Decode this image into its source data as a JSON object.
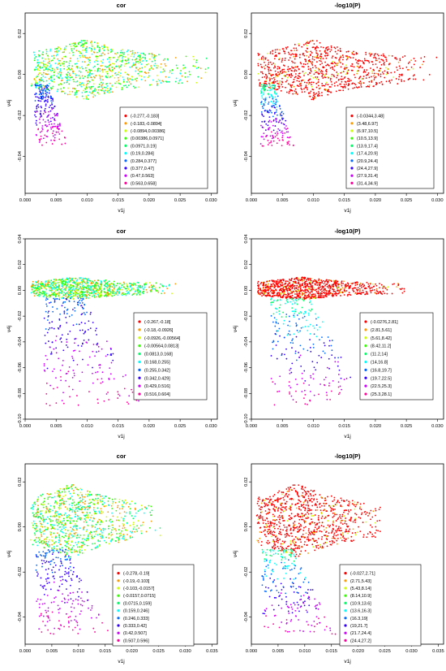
{
  "chart_data": [
    {
      "type": "scatter",
      "title": "cor",
      "xlabel": "v1j",
      "ylabel": "v4j",
      "xlim": [
        0,
        0.031
      ],
      "ylim": [
        -0.058,
        0.03
      ],
      "xticks": [
        "0.000",
        "0.005",
        "0.010",
        "0.015",
        "0.020",
        "0.025",
        "0.030"
      ],
      "yticks": [
        "-0.04",
        "-0.02",
        "0.00",
        "0.02"
      ],
      "legend_position": "bottom-right",
      "legend": [
        "(-0.277,-0.183]",
        "(-0.183,-0.0894]",
        "(-0.0894,0.00386]",
        "(0.00386,0.0971]",
        "(0.0971,0.19]",
        "(0.19,0.284]",
        "(0.284,0.377]",
        "(0.377,0.47]",
        "(0.47,0.563]",
        "(0.563,0.658]"
      ],
      "colors": [
        "#ff0000",
        "#ff9900",
        "#ccff00",
        "#33ff00",
        "#00ff66",
        "#00ffff",
        "#0066ff",
        "#3300ff",
        "#cc00ff",
        "#ff0099"
      ],
      "seed": 11,
      "main_n": 900,
      "main_x": [
        0.001,
        0.03
      ],
      "main_y": [
        -0.008,
        0.022
      ],
      "tail_n": 220,
      "tail_x": [
        0.0015,
        0.007
      ],
      "tail_y": [
        -0.035,
        -0.005
      ]
    },
    {
      "type": "scatter",
      "title": "-log10(P)",
      "xlabel": "v1j",
      "ylabel": "v4j",
      "xlim": [
        0,
        0.031
      ],
      "ylim": [
        -0.058,
        0.03
      ],
      "xticks": [
        "0.000",
        "0.005",
        "0.010",
        "0.015",
        "0.020",
        "0.025",
        "0.030"
      ],
      "yticks": [
        "-0.04",
        "-0.02",
        "0.00",
        "0.02"
      ],
      "legend_position": "bottom-right",
      "legend": [
        "(-0.0344,3.48]",
        "(3.48,6.97]",
        "(6.97,10.5]",
        "(10.5,13.9]",
        "(13.9,17.4]",
        "(17.4,20.9]",
        "(20.9,24.4]",
        "(24.4,27.9]",
        "(27.9,31.4]",
        "(31.4,34.9]"
      ],
      "colors": [
        "#ff0000",
        "#ff9900",
        "#ccff00",
        "#33ff00",
        "#00ff66",
        "#00ffff",
        "#0066ff",
        "#3300ff",
        "#cc00ff",
        "#ff0099"
      ],
      "seed": 12,
      "main_n": 900,
      "main_x": [
        0.001,
        0.03
      ],
      "main_y": [
        -0.008,
        0.022
      ],
      "tail_n": 220,
      "tail_x": [
        0.0015,
        0.007
      ],
      "tail_y": [
        -0.035,
        -0.005
      ]
    },
    {
      "type": "scatter",
      "title": "cor",
      "xlabel": "v1j",
      "ylabel": "v4j",
      "xlim": [
        0,
        0.031
      ],
      "ylim": [
        -0.1,
        0.04
      ],
      "xticks": [
        "0.000",
        "0.005",
        "0.010",
        "0.015",
        "0.020",
        "0.025",
        "0.030"
      ],
      "yticks": [
        "-0.10",
        "-0.08",
        "-0.06",
        "-0.04",
        "-0.02",
        "0.00",
        "0.02",
        "0.04"
      ],
      "legend_position": "bottom-right",
      "legend": [
        "(-0.267,-0.18]",
        "(-0.18,-0.0926]",
        "(-0.0926,-0.00564]",
        "(-0.00564,0.0813]",
        "(0.0813,0.168]",
        "(0.168,0.255]",
        "(0.255,0.342]",
        "(0.342,0.429]",
        "(0.429,0.516]",
        "(0.516,0.604]"
      ],
      "colors": [
        "#ff0000",
        "#ff9900",
        "#ccff00",
        "#33ff00",
        "#00ff66",
        "#00ffff",
        "#0066ff",
        "#3300ff",
        "#cc00ff",
        "#ff0099"
      ],
      "seed": 21,
      "main_n": 900,
      "main_x": [
        0.001,
        0.025
      ],
      "main_y": [
        -0.006,
        0.012
      ],
      "tail_n": 260,
      "tail_x": [
        0.003,
        0.019
      ],
      "tail_y": [
        -0.09,
        -0.006
      ]
    },
    {
      "type": "scatter",
      "title": "-log10(P)",
      "xlabel": "v1j",
      "ylabel": "v4j",
      "xlim": [
        0,
        0.031
      ],
      "ylim": [
        -0.1,
        0.04
      ],
      "xticks": [
        "0.000",
        "0.005",
        "0.010",
        "0.015",
        "0.020",
        "0.025",
        "0.030"
      ],
      "yticks": [
        "-0.10",
        "-0.08",
        "-0.06",
        "-0.04",
        "-0.02",
        "0.00",
        "0.02",
        "0.04"
      ],
      "legend_position": "bottom-right",
      "legend": [
        "(-0.0276,2.81]",
        "(2.81,5.61]",
        "(5.61,8.42]",
        "(8.42,11.2]",
        "(11.2,14]",
        "(14,16.8]",
        "(16.8,19.7]",
        "(19.7,22.5]",
        "(22.5,25.3]",
        "(25.3,28.1]"
      ],
      "colors": [
        "#ff0000",
        "#ff9900",
        "#ccff00",
        "#33ff00",
        "#00ff66",
        "#00ffff",
        "#0066ff",
        "#3300ff",
        "#cc00ff",
        "#ff0099"
      ],
      "seed": 22,
      "main_n": 900,
      "main_x": [
        0.001,
        0.025
      ],
      "main_y": [
        -0.006,
        0.012
      ],
      "tail_n": 260,
      "tail_x": [
        0.003,
        0.019
      ],
      "tail_y": [
        -0.09,
        -0.006
      ]
    },
    {
      "type": "scatter",
      "title": "cor",
      "xlabel": "v1j",
      "ylabel": "v4j",
      "xlim": [
        0,
        0.036
      ],
      "ylim": [
        -0.052,
        0.028
      ],
      "xticks": [
        "0.000",
        "0.005",
        "0.010",
        "0.015",
        "0.020",
        "0.025",
        "0.030",
        "0.035"
      ],
      "yticks": [
        "-0.04",
        "-0.02",
        "0.00",
        "0.02"
      ],
      "legend_position": "bottom-right",
      "legend": [
        "(-0.278,-0.19]",
        "(-0.19,-0.103]",
        "(-0.103,-0.0157]",
        "(-0.0157,0.0715]",
        "(0.0715,0.159]",
        "(0.159,0.246]",
        "(0.246,0.333]",
        "(0.333,0.42]",
        "(0.42,0.507]",
        "(0.507,0.596]"
      ],
      "colors": [
        "#ff0000",
        "#ff9900",
        "#ccff00",
        "#33ff00",
        "#00ff66",
        "#00ffff",
        "#0066ff",
        "#3300ff",
        "#cc00ff",
        "#ff0099"
      ],
      "seed": 31,
      "main_n": 900,
      "main_x": [
        0.001,
        0.026
      ],
      "main_y": [
        -0.012,
        0.022
      ],
      "tail_n": 240,
      "tail_x": [
        0.002,
        0.016
      ],
      "tail_y": [
        -0.048,
        -0.01
      ]
    },
    {
      "type": "scatter",
      "title": "-log10(P)",
      "xlabel": "v1j",
      "ylabel": "v4j",
      "xlim": [
        0,
        0.036
      ],
      "ylim": [
        -0.052,
        0.028
      ],
      "xticks": [
        "0.000",
        "0.005",
        "0.010",
        "0.015",
        "0.020",
        "0.025",
        "0.030",
        "0.035"
      ],
      "yticks": [
        "-0.04",
        "-0.02",
        "0.00",
        "0.02"
      ],
      "legend_position": "bottom-right",
      "legend": [
        "(-0.027,2.71]",
        "(2.71,5.43]",
        "(5.43,8.14]",
        "(8.14,10.9]",
        "(10.9,13.6]",
        "(13.6,16.3]",
        "(16.3,19]",
        "(19,21.7]",
        "(21.7,24.4]",
        "(24.4,27.2]"
      ],
      "colors": [
        "#ff0000",
        "#ff9900",
        "#ccff00",
        "#33ff00",
        "#00ff66",
        "#00ffff",
        "#0066ff",
        "#3300ff",
        "#cc00ff",
        "#ff0099"
      ],
      "seed": 32,
      "main_n": 900,
      "main_x": [
        0.001,
        0.026
      ],
      "main_y": [
        -0.012,
        0.022
      ],
      "tail_n": 240,
      "tail_x": [
        0.002,
        0.016
      ],
      "tail_y": [
        -0.048,
        -0.01
      ]
    }
  ]
}
